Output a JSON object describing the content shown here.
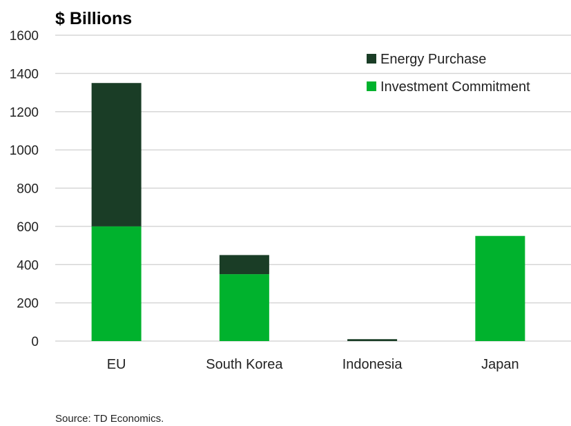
{
  "chart_data": {
    "type": "bar",
    "stacked": true,
    "title": "$ Billions",
    "categories": [
      "EU",
      "South Korea",
      "Indonesia",
      "Japan"
    ],
    "series": [
      {
        "name": "Investment Commitment",
        "values": [
          600,
          350,
          0,
          550
        ],
        "color": "#00b22d"
      },
      {
        "name": "Energy Purchase",
        "values": [
          750,
          100,
          10,
          0
        ],
        "color": "#1a3d26"
      }
    ],
    "ylim": [
      0,
      1600
    ],
    "yticks": [
      0,
      200,
      400,
      600,
      800,
      1000,
      1200,
      1400,
      1600
    ],
    "grid": true,
    "legend_position": "top-right",
    "legend_order": [
      "Energy Purchase",
      "Investment Commitment"
    ],
    "source": "Source: TD Economics."
  }
}
